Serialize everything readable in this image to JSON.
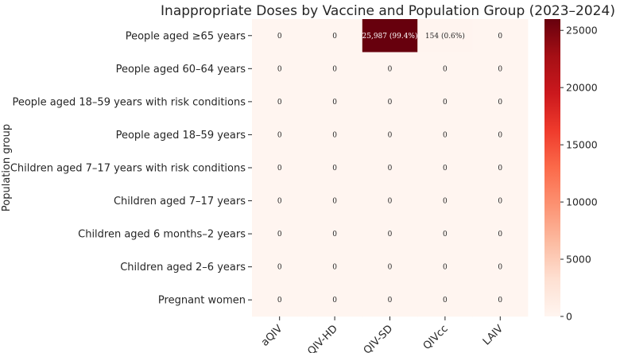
{
  "chart_data": {
    "type": "heatmap",
    "title": "Inappropriate Doses by Vaccine and Population Group (2023–2024)",
    "xlabel": "",
    "ylabel": "Population group",
    "columns": [
      "aQIV",
      "QIV-HD",
      "QIV-SD",
      "QIVcc",
      "LAIV"
    ],
    "rows": [
      "People aged ≥65 years",
      "People aged 60–64 years",
      "People aged 18–59 years with risk conditions",
      "People aged 18–59 years",
      "Children aged 7–17 years with risk conditions",
      "Children aged 7–17 years",
      "Children aged 6 months–2 years",
      "Children aged 2–6 years",
      "Pregnant women"
    ],
    "values": [
      [
        0,
        0,
        25987,
        154,
        0
      ],
      [
        0,
        0,
        0,
        0,
        0
      ],
      [
        0,
        0,
        0,
        0,
        0
      ],
      [
        0,
        0,
        0,
        0,
        0
      ],
      [
        0,
        0,
        0,
        0,
        0
      ],
      [
        0,
        0,
        0,
        0,
        0
      ],
      [
        0,
        0,
        0,
        0,
        0
      ],
      [
        0,
        0,
        0,
        0,
        0
      ],
      [
        0,
        0,
        0,
        0,
        0
      ]
    ],
    "annotations": [
      [
        "0",
        "0",
        "25,987 (99.4%)",
        "154 (0.6%)",
        "0"
      ],
      [
        "0",
        "0",
        "0",
        "0",
        "0"
      ],
      [
        "0",
        "0",
        "0",
        "0",
        "0"
      ],
      [
        "0",
        "0",
        "0",
        "0",
        "0"
      ],
      [
        "0",
        "0",
        "0",
        "0",
        "0"
      ],
      [
        "0",
        "0",
        "0",
        "0",
        "0"
      ],
      [
        "0",
        "0",
        "0",
        "0",
        "0"
      ],
      [
        "0",
        "0",
        "0",
        "0",
        "0"
      ],
      [
        "0",
        "0",
        "0",
        "0",
        "0"
      ]
    ],
    "colorbar": {
      "colormap": "Reds",
      "min": 0,
      "max": 25987,
      "ticks": [
        0,
        5000,
        10000,
        15000,
        20000,
        25000
      ]
    }
  }
}
